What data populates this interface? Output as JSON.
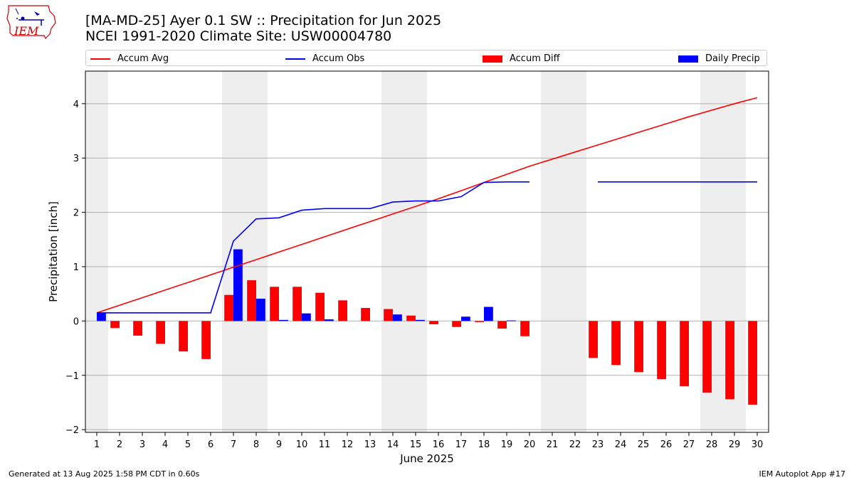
{
  "header": {
    "title_line1": "[MA-MD-25] Ayer 0.1 SW :: Precipitation for Jun 2025",
    "title_line2": "NCEI 1991-2020 Climate Site: USW00004780",
    "logo_text": "IEM"
  },
  "footer": {
    "left": "Generated at 13 Aug 2025 1:58 PM CDT in 0.60s",
    "right": "IEM Autoplot App #17"
  },
  "colors": {
    "accum_avg": "#ff0000",
    "accum_obs": "#0000ff",
    "accum_diff": "#ff0000",
    "daily_precip": "#0000ff",
    "weekend_shade": "#eeeeee",
    "grid": "#b0b0b0"
  },
  "chart_data": {
    "type": "bar",
    "xlabel": "June 2025",
    "ylabel": "Precipitation [inch]",
    "xlim": [
      0.5,
      30.5
    ],
    "ylim": [
      -2.05,
      4.6
    ],
    "yticks": [
      -2,
      -1,
      0,
      1,
      2,
      3,
      4
    ],
    "ytick_labels": [
      "−2",
      "−1",
      "0",
      "1",
      "2",
      "3",
      "4"
    ],
    "grid": "horizontal",
    "legend_placement": "top",
    "weekend_days": [
      1,
      7,
      8,
      14,
      15,
      21,
      22,
      28,
      29
    ],
    "days": [
      1,
      2,
      3,
      4,
      5,
      6,
      7,
      8,
      9,
      10,
      11,
      12,
      13,
      14,
      15,
      16,
      17,
      18,
      19,
      20,
      21,
      22,
      23,
      24,
      25,
      26,
      27,
      28,
      29,
      30
    ],
    "series": [
      {
        "name": "Accum Avg",
        "kind": "line",
        "values": [
          0.15,
          0.29,
          0.43,
          0.57,
          0.71,
          0.85,
          0.99,
          1.13,
          1.27,
          1.41,
          1.55,
          1.69,
          1.83,
          1.97,
          2.11,
          2.25,
          2.4,
          2.55,
          2.7,
          2.85,
          2.98,
          3.11,
          3.24,
          3.37,
          3.5,
          3.63,
          3.76,
          3.88,
          4.0,
          4.11
        ]
      },
      {
        "name": "Accum Obs",
        "kind": "line",
        "values": [
          0.15,
          0.15,
          0.15,
          0.15,
          0.15,
          0.15,
          1.47,
          1.88,
          1.9,
          2.04,
          2.07,
          2.07,
          2.07,
          2.19,
          2.21,
          2.21,
          2.29,
          2.55,
          2.56,
          2.56,
          null,
          null,
          2.56,
          2.56,
          2.56,
          2.56,
          2.56,
          2.56,
          2.56,
          2.56
        ]
      },
      {
        "name": "Accum Diff",
        "kind": "bar",
        "values": [
          0.0,
          -0.13,
          -0.27,
          -0.42,
          -0.56,
          -0.7,
          0.48,
          0.75,
          0.63,
          0.63,
          0.52,
          0.38,
          0.24,
          0.22,
          0.1,
          -0.06,
          -0.11,
          -0.02,
          -0.14,
          -0.28,
          null,
          null,
          -0.68,
          -0.81,
          -0.94,
          -1.07,
          -1.2,
          -1.32,
          -1.44,
          -1.54
        ]
      },
      {
        "name": "Daily Precip",
        "kind": "bar",
        "values": [
          0.15,
          0.0,
          0.0,
          0.0,
          0.0,
          0.0,
          1.32,
          0.41,
          0.02,
          0.14,
          0.03,
          0.0,
          0.0,
          0.12,
          0.02,
          0.0,
          0.08,
          0.26,
          0.01,
          0.0,
          null,
          null,
          0.0,
          0.0,
          0.0,
          0.0,
          0.0,
          0.0,
          0.0,
          0.0
        ]
      }
    ]
  }
}
